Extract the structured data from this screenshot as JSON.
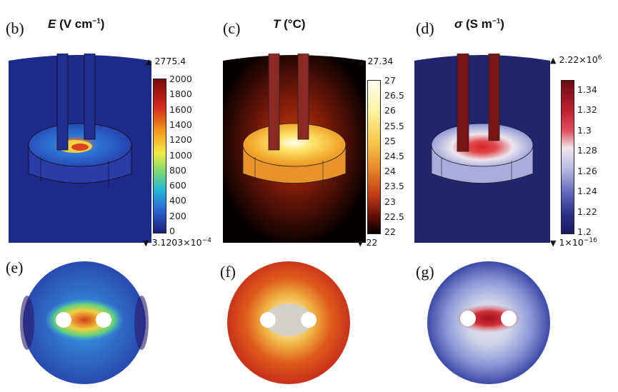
{
  "panels": {
    "b": {
      "label": "(b)",
      "symbol": "E",
      "unit": "(V cm",
      "unit_exp": "−1",
      "unit_close": ")",
      "max": "2775.4",
      "min_base": "3.1203×10",
      "min_exp": "−4",
      "ticks": [
        "2000",
        "1800",
        "1600",
        "1400",
        "1200",
        "1000",
        "800",
        "600",
        "400",
        "200",
        "0"
      ]
    },
    "c": {
      "label": "(c)",
      "symbol": "T",
      "unit": "(°C)",
      "max": "27.34",
      "min": "22",
      "ticks": [
        "27",
        "26.5",
        "26",
        "25.5",
        "25",
        "24.5",
        "24",
        "23.5",
        "23",
        "22.5",
        "22"
      ]
    },
    "d": {
      "label": "(d)",
      "symbol": "σ",
      "unit": "(S m",
      "unit_exp": "−1",
      "unit_close": ")",
      "max_base": "2.22×10",
      "max_exp": "6",
      "min_base": "1×10",
      "min_exp": "−16",
      "ticks": [
        "1.34",
        "1.32",
        "1.3",
        "1.28",
        "1.26",
        "1.24",
        "1.22",
        "1.2"
      ]
    },
    "e": {
      "label": "(e)"
    },
    "f": {
      "label": "(f)"
    },
    "g": {
      "label": "(g)"
    }
  },
  "colors": {
    "field_background": "#1c2a8a",
    "temperature_background": "#050000",
    "conductivity_background": "#23246e",
    "electrode_field": "#1f2f90",
    "electrode_hot": "#7a1010",
    "hole": "#ffffff"
  }
}
